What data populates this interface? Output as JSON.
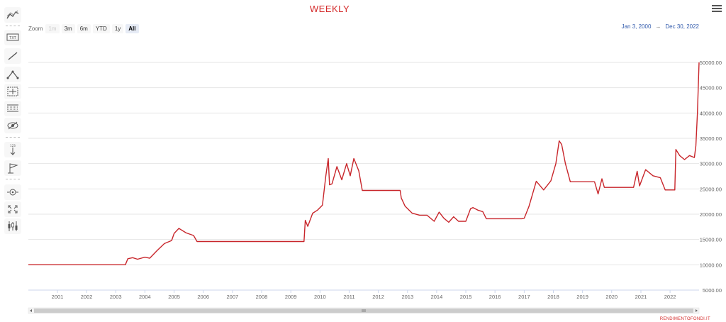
{
  "header": {
    "title": "WEEKLY",
    "menu_icon": "hamburger-menu-icon"
  },
  "zoom": {
    "label": "Zoom",
    "buttons": [
      {
        "label": "1m",
        "state": "disabled"
      },
      {
        "label": "3m",
        "state": "normal"
      },
      {
        "label": "6m",
        "state": "normal"
      },
      {
        "label": "YTD",
        "state": "normal"
      },
      {
        "label": "1y",
        "state": "normal"
      },
      {
        "label": "All",
        "state": "active"
      }
    ]
  },
  "range": {
    "from": "Jan 3, 2000",
    "arrow": "→",
    "to": "Dec 30, 2022"
  },
  "toolbar": {
    "tools": [
      "indicators-icon",
      "text-annotation-icon",
      "line-tool-icon",
      "elliott-wave-icon",
      "measure-icon",
      "fibonacci-icon",
      "toggle-annotations-icon",
      "vertical-arrow-icon",
      "flag-icon",
      "zoom-change-icon",
      "fullscreen-icon",
      "series-type-icon"
    ]
  },
  "credit": "RENDIMENTOFONDI.IT",
  "colors": {
    "series": "#c8262b",
    "title": "#d42a2a",
    "range_text": "#335cad",
    "grid": "#e6e6e6"
  },
  "chart_data": {
    "type": "line",
    "title": "WEEKLY",
    "x_axis": {
      "type": "datetime",
      "range": [
        "2000-01-03",
        "2022-12-30"
      ],
      "tick_labels": [
        "2001",
        "2002",
        "2003",
        "2004",
        "2005",
        "2006",
        "2007",
        "2008",
        "2009",
        "2010",
        "2011",
        "2012",
        "2013",
        "2014",
        "2015",
        "2016",
        "2017",
        "2018",
        "2019",
        "2020",
        "2021",
        "2022"
      ]
    },
    "y_axis": {
      "position": "right",
      "ylim": [
        5000,
        50000
      ],
      "tick_labels": [
        "5000.00",
        "10000.00",
        "15000.00",
        "20000.00",
        "25000.00",
        "30000.00",
        "35000.00",
        "40000.00",
        "45000.00",
        "50000.00"
      ]
    },
    "grid": true,
    "navigator": {
      "scrollbar": true
    },
    "series": [
      {
        "x": [
          "2000-01-03",
          "2003-05-01",
          "2003-06-01",
          "2003-08-01",
          "2003-10-01",
          "2004-01-01",
          "2004-03-01",
          "2004-06-01",
          "2004-09-01",
          "2004-12-01",
          "2005-01-01",
          "2005-03-01",
          "2005-06-01",
          "2005-09-01",
          "2005-10-15",
          "2009-06-15",
          "2009-07-01",
          "2009-08-01",
          "2009-10-01",
          "2009-12-01",
          "2010-02-01",
          "2010-03-15",
          "2010-04-15",
          "2010-05-01",
          "2010-06-01",
          "2010-08-01",
          "2010-10-01",
          "2010-12-01",
          "2011-01-15",
          "2011-03-01",
          "2011-05-01",
          "2011-06-15",
          "2012-10-01",
          "2012-10-15",
          "2012-12-01",
          "2013-03-01",
          "2013-06-01",
          "2013-09-01",
          "2013-12-01",
          "2014-02-01",
          "2014-04-01",
          "2014-06-01",
          "2014-08-01",
          "2014-10-01",
          "2015-01-01",
          "2015-03-01",
          "2015-04-01",
          "2015-06-01",
          "2015-08-01",
          "2015-09-15",
          "2016-12-01",
          "2017-01-01",
          "2017-03-01",
          "2017-06-01",
          "2017-09-01",
          "2017-12-01",
          "2018-02-01",
          "2018-03-15",
          "2018-04-15",
          "2018-06-01",
          "2018-08-01",
          "2018-10-01",
          "2019-06-01",
          "2019-07-15",
          "2019-09-01",
          "2019-10-01",
          "2019-12-01",
          "2020-10-01",
          "2020-11-15",
          "2020-12-15",
          "2021-03-01",
          "2021-06-01",
          "2021-09-01",
          "2021-11-01",
          "2022-03-01",
          "2022-03-15",
          "2022-05-01",
          "2022-07-01",
          "2022-09-01",
          "2022-11-01",
          "2022-11-20",
          "2022-12-10",
          "2022-12-30"
        ],
        "y": [
          10000,
          10000,
          11200,
          11400,
          11100,
          11500,
          11300,
          12800,
          14200,
          14800,
          16200,
          17200,
          16300,
          15800,
          14600,
          14600,
          18800,
          17600,
          20200,
          20800,
          21800,
          27500,
          31000,
          25800,
          26000,
          29400,
          26800,
          30000,
          27600,
          31000,
          28600,
          24700,
          24700,
          23200,
          21600,
          20200,
          19800,
          19800,
          18600,
          20400,
          19200,
          18400,
          19500,
          18600,
          18600,
          21100,
          21300,
          20800,
          20500,
          19100,
          19100,
          19200,
          21500,
          26500,
          24800,
          26600,
          30000,
          34500,
          33800,
          30000,
          26400,
          26400,
          26400,
          24000,
          27000,
          25300,
          25300,
          25300,
          28500,
          25600,
          28800,
          27600,
          27200,
          24800,
          24800,
          32800,
          31600,
          30800,
          31600,
          31200,
          33500,
          40000,
          50000
        ]
      }
    ]
  }
}
